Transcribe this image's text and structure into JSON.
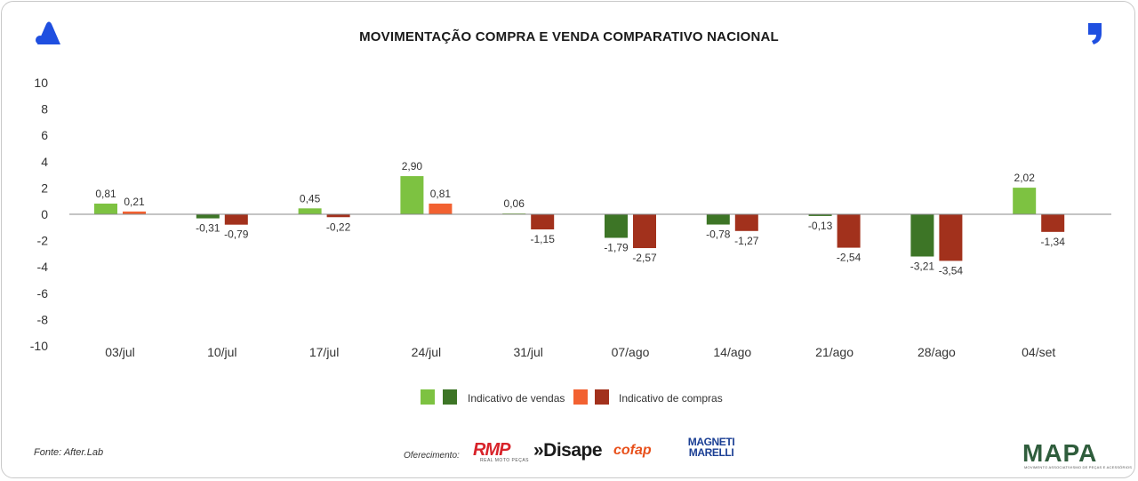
{
  "header": {
    "title": "MOVIMENTAÇÃO COMPRA E VENDA COMPARATIVO NACIONAL"
  },
  "colors": {
    "sales_positive": "#7dc241",
    "sales_negative": "#3d7526",
    "purchases_positive": "#f26131",
    "purchases_negative": "#a2311c",
    "axis_line": "#888888",
    "brand_blue": "#1f4fe0"
  },
  "chart_data": {
    "type": "bar",
    "title": "MOVIMENTAÇÃO COMPRA E VENDA COMPARATIVO NACIONAL",
    "xlabel": "",
    "ylabel": "",
    "ylim": [
      -10,
      10
    ],
    "yticks": [
      10,
      8,
      6,
      4,
      2,
      0,
      -2,
      -4,
      -6,
      -8,
      -10
    ],
    "grid": false,
    "categories": [
      "03/jul",
      "10/jul",
      "17/jul",
      "24/jul",
      "31/jul",
      "07/ago",
      "14/ago",
      "21/ago",
      "28/ago",
      "04/set"
    ],
    "series": [
      {
        "name": "Indicativo de vendas",
        "values": [
          0.81,
          -0.31,
          0.45,
          2.9,
          0.06,
          -1.79,
          -0.78,
          -0.13,
          -3.21,
          2.02
        ],
        "labels": [
          "0,81",
          "-0,31",
          "0,45",
          "2,90",
          "0,06",
          "-1,79",
          "-0,78",
          "-0,13",
          "-3,21",
          "2,02"
        ]
      },
      {
        "name": "Indicativo de compras",
        "values": [
          0.21,
          -0.79,
          -0.22,
          0.81,
          -1.15,
          -2.57,
          -1.27,
          -2.54,
          -3.54,
          -1.34
        ],
        "labels": [
          "0,21",
          "-0,79",
          "-0,22",
          "0,81",
          "-1,15",
          "-2,57",
          "-1,27",
          "-2,54",
          "-3,54",
          "-1,34"
        ]
      }
    ],
    "legend": {
      "placement": "bottom-center",
      "entries": [
        "Indicativo de vendas",
        "Indicativo de compras"
      ]
    }
  },
  "footer": {
    "source": "Fonte: After.Lab",
    "sponsors_label": "Oferecimento:",
    "sponsors": {
      "rmp": "RMP",
      "rmp_sub": "REAL MOTO PEÇAS",
      "disape": "»Disape",
      "cofap": "cofap",
      "magneti_line1": "MAGNETI",
      "magneti_line2": "MARELLI"
    },
    "brand": "MAPA",
    "brand_sub": "MOVIMENTO ASSOCIATIVISMO DE PEÇAS E ACESSÓRIOS"
  }
}
